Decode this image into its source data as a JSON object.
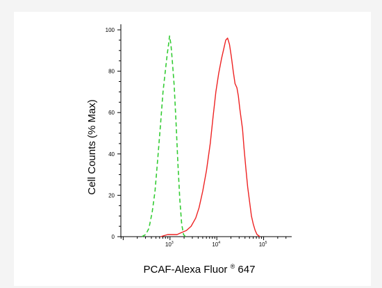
{
  "chart_data": {
    "type": "line",
    "title": "",
    "ylabel": "Cell Counts (% Max)",
    "xlabel_main": "PCAF-Alexa Fluor",
    "xlabel_reg": "®",
    "xlabel_end": "647",
    "x_scale": "log",
    "xlim_log10": [
      1.95,
      5.6
    ],
    "ylim": [
      0,
      100
    ],
    "y_ticks": [
      "0",
      "20",
      "40",
      "60",
      "80",
      "100"
    ],
    "x_ticks": [
      {
        "exp": 3,
        "base": "10",
        "sup": "3"
      },
      {
        "exp": 4,
        "base": "10",
        "sup": "4"
      },
      {
        "exp": 5,
        "base": "10",
        "sup": "5"
      }
    ],
    "grid": false,
    "series": [
      {
        "style": "dashed",
        "color": "#33cc33",
        "points": [
          [
            2.4,
            0
          ],
          [
            2.48,
            1
          ],
          [
            2.55,
            4
          ],
          [
            2.62,
            12
          ],
          [
            2.68,
            22
          ],
          [
            2.74,
            38
          ],
          [
            2.8,
            55
          ],
          [
            2.85,
            70
          ],
          [
            2.9,
            80
          ],
          [
            2.94,
            88
          ],
          [
            2.97,
            93
          ],
          [
            2.99,
            97
          ],
          [
            3.02,
            93
          ],
          [
            3.05,
            85
          ],
          [
            3.09,
            73
          ],
          [
            3.13,
            55
          ],
          [
            3.17,
            35
          ],
          [
            3.21,
            18
          ],
          [
            3.25,
            6
          ],
          [
            3.29,
            1
          ],
          [
            3.33,
            0
          ]
        ]
      },
      {
        "style": "solid",
        "color": "#ee2222",
        "points": [
          [
            2.8,
            0
          ],
          [
            2.95,
            1
          ],
          [
            3.05,
            1
          ],
          [
            3.15,
            1
          ],
          [
            3.25,
            2
          ],
          [
            3.35,
            3
          ],
          [
            3.45,
            5
          ],
          [
            3.55,
            9
          ],
          [
            3.62,
            14
          ],
          [
            3.7,
            22
          ],
          [
            3.78,
            32
          ],
          [
            3.86,
            45
          ],
          [
            3.92,
            58
          ],
          [
            3.98,
            70
          ],
          [
            4.04,
            79
          ],
          [
            4.1,
            86
          ],
          [
            4.15,
            91
          ],
          [
            4.19,
            95
          ],
          [
            4.23,
            96
          ],
          [
            4.27,
            93
          ],
          [
            4.31,
            87
          ],
          [
            4.35,
            80
          ],
          [
            4.39,
            74
          ],
          [
            4.43,
            72
          ],
          [
            4.46,
            68
          ],
          [
            4.49,
            62
          ],
          [
            4.52,
            57
          ],
          [
            4.55,
            52
          ],
          [
            4.58,
            43
          ],
          [
            4.62,
            33
          ],
          [
            4.66,
            24
          ],
          [
            4.7,
            17
          ],
          [
            4.74,
            10
          ],
          [
            4.78,
            6
          ],
          [
            4.82,
            3
          ],
          [
            4.86,
            1
          ],
          [
            4.92,
            0
          ]
        ]
      }
    ]
  }
}
